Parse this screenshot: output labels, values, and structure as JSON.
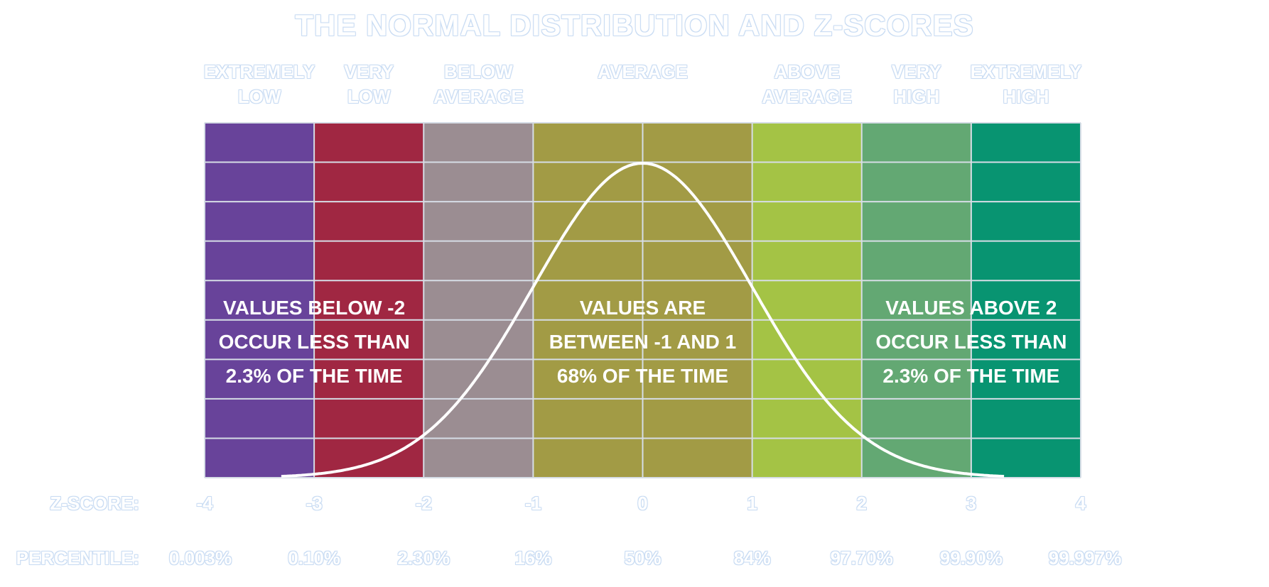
{
  "chart_data": {
    "type": "area",
    "title": "THE NORMAL DISTRIBUTION AND Z-SCORES",
    "x_range": [
      -4,
      4
    ],
    "x_ticks": [
      -4,
      -3,
      -2,
      -1,
      0,
      1,
      2,
      3,
      4
    ],
    "tick_labels": [
      "-4",
      "-3",
      "-2",
      "-1",
      "0",
      "1",
      "2",
      "3",
      "4"
    ],
    "row_labels": {
      "z": "Z-SCORE:",
      "percentile": "PERCENTILE:"
    },
    "percentiles": [
      "0.003%",
      "0.10%",
      "2.30%",
      "16%",
      "50%",
      "84%",
      "97.70%",
      "99.90%",
      "99.997%"
    ],
    "categories": [
      {
        "label": "EXTREMELY\nLOW",
        "from": -4,
        "to": -3,
        "color": "#68439a"
      },
      {
        "label": "VERY\nLOW",
        "from": -3,
        "to": -2,
        "color": "#a02742"
      },
      {
        "label": "BELOW\nAVERAGE",
        "from": -2,
        "to": -1,
        "color": "#9b8d92"
      },
      {
        "label": "AVERAGE",
        "from": -1,
        "to": 1,
        "color": "#a29b45"
      },
      {
        "label": "ABOVE\nAVERAGE",
        "from": 1,
        "to": 2,
        "color": "#a4c345"
      },
      {
        "label": "VERY\nHIGH",
        "from": 2,
        "to": 3,
        "color": "#63a873"
      },
      {
        "label": "EXTREMELY\nHIGH",
        "from": 3,
        "to": 4,
        "color": "#089471"
      }
    ],
    "curve": {
      "mean": 0,
      "sd": 1
    },
    "annotations": [
      {
        "lines": [
          "VALUES BELOW -2",
          "OCCUR LESS THAN",
          "2.3% OF THE TIME"
        ],
        "x": -3
      },
      {
        "lines": [
          "VALUES ARE",
          "BETWEEN -1 AND 1",
          "68% OF THE TIME"
        ],
        "x": 0
      },
      {
        "lines": [
          "VALUES ABOVE 2",
          "OCCUR LESS THAN",
          "2.3% OF THE TIME"
        ],
        "x": 3
      }
    ],
    "grid": true
  }
}
